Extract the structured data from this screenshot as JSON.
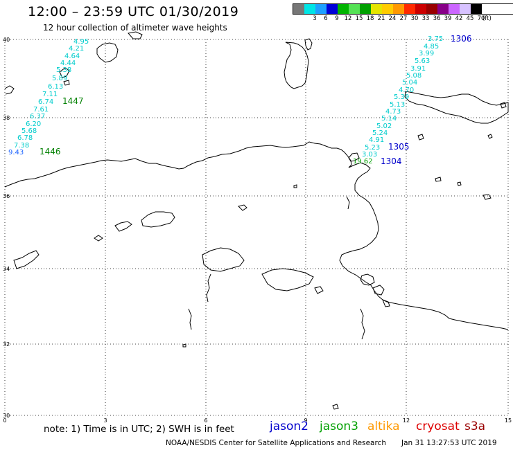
{
  "header": {
    "title": "12:00 – 23:59 UTC 01/30/2019",
    "subtitle": "12 hour collection of altimeter wave heights"
  },
  "color_scale": {
    "unit_label": "(ft)",
    "bins": [
      {
        "label": "",
        "color": "#777777"
      },
      {
        "label": "3",
        "color": "#00e5e5"
      },
      {
        "label": "6",
        "color": "#1ea0ff"
      },
      {
        "label": "9",
        "color": "#0000d8"
      },
      {
        "label": "12",
        "color": "#00b400"
      },
      {
        "label": "15",
        "color": "#55e255"
      },
      {
        "label": "18",
        "color": "#00a000"
      },
      {
        "label": "21",
        "color": "#e5e500"
      },
      {
        "label": "24",
        "color": "#ffcc00"
      },
      {
        "label": "27",
        "color": "#ff9900"
      },
      {
        "label": "30",
        "color": "#ff2a00"
      },
      {
        "label": "33",
        "color": "#cc0000"
      },
      {
        "label": "36",
        "color": "#990000"
      },
      {
        "label": "39",
        "color": "#880088"
      },
      {
        "label": "42",
        "color": "#cc66ff"
      },
      {
        "label": "45",
        "color": "#d7c2ff"
      },
      {
        "label": "70",
        "color": "#000000"
      }
    ]
  },
  "axes": {
    "lat_labels": [
      "40",
      "38",
      "36",
      "34",
      "32",
      "30"
    ],
    "lon_labels": [
      "0",
      "3",
      "6",
      "9",
      "12",
      "15"
    ]
  },
  "tracks": [
    {
      "satellite": "jason3",
      "pass_labels": [
        {
          "text": "1447",
          "color": "#008000"
        },
        {
          "text": "1446",
          "color": "#008000"
        }
      ],
      "readings": [
        {
          "value": "4.95",
          "color": "#00cccc"
        },
        {
          "value": "4.21",
          "color": "#00cccc"
        },
        {
          "value": "4.64",
          "color": "#00cccc"
        },
        {
          "value": "4.44",
          "color": "#00cccc"
        },
        {
          "value": "5.38",
          "color": "#00cccc"
        },
        {
          "value": "5.89",
          "color": "#00cccc"
        },
        {
          "value": "6.13",
          "color": "#00cccc"
        },
        {
          "value": "7.11",
          "color": "#00cccc"
        },
        {
          "value": "6.74",
          "color": "#00cccc"
        },
        {
          "value": "7.61",
          "color": "#00cccc"
        },
        {
          "value": "6.37",
          "color": "#00cccc"
        },
        {
          "value": "6.20",
          "color": "#00cccc"
        },
        {
          "value": "5.68",
          "color": "#00cccc"
        },
        {
          "value": "6.78",
          "color": "#00cccc"
        },
        {
          "value": "7.38",
          "color": "#00cccc"
        },
        {
          "value": "9.43",
          "color": "#1e64ff"
        }
      ]
    },
    {
      "satellite": "jason2",
      "pass_labels": [
        {
          "text": "1306",
          "color": "#0000cc"
        },
        {
          "text": "1305",
          "color": "#0000cc"
        },
        {
          "text": "1304",
          "color": "#0000cc"
        }
      ],
      "readings": [
        {
          "value": "3.75",
          "color": "#00cccc"
        },
        {
          "value": "4.85",
          "color": "#00cccc"
        },
        {
          "value": "3.99",
          "color": "#00cccc"
        },
        {
          "value": "5.63",
          "color": "#00cccc"
        },
        {
          "value": "3.91",
          "color": "#00cccc"
        },
        {
          "value": "5.08",
          "color": "#00cccc"
        },
        {
          "value": "5.04",
          "color": "#00cccc"
        },
        {
          "value": "4.70",
          "color": "#00cccc"
        },
        {
          "value": "5.39",
          "color": "#00cccc"
        },
        {
          "value": "5.13",
          "color": "#00cccc"
        },
        {
          "value": "4.73",
          "color": "#00cccc"
        },
        {
          "value": "5.14",
          "color": "#00cccc"
        },
        {
          "value": "5.02",
          "color": "#00cccc"
        },
        {
          "value": "5.24",
          "color": "#00cccc"
        },
        {
          "value": "4.91",
          "color": "#00cccc"
        },
        {
          "value": "5.23",
          "color": "#00cccc"
        },
        {
          "value": "3.03",
          "color": "#00cccc"
        },
        {
          "value": "19.62",
          "color": "#00a000"
        }
      ]
    }
  ],
  "footer": {
    "note": "note: 1) Time is in UTC; 2) SWH is in feet",
    "legend": [
      {
        "name": "jason2",
        "color": "#0000cc"
      },
      {
        "name": "jason3",
        "color": "#00a000"
      },
      {
        "name": "altika",
        "color": "#ff9900"
      },
      {
        "name": "cryosat",
        "color": "#dd0000"
      },
      {
        "name": "s3a",
        "color": "#990000"
      }
    ],
    "credit": "NOAA/NESDIS Center for Satellite Applications and Research",
    "timestamp": "Jan 31 13:27:53 UTC 2019"
  }
}
